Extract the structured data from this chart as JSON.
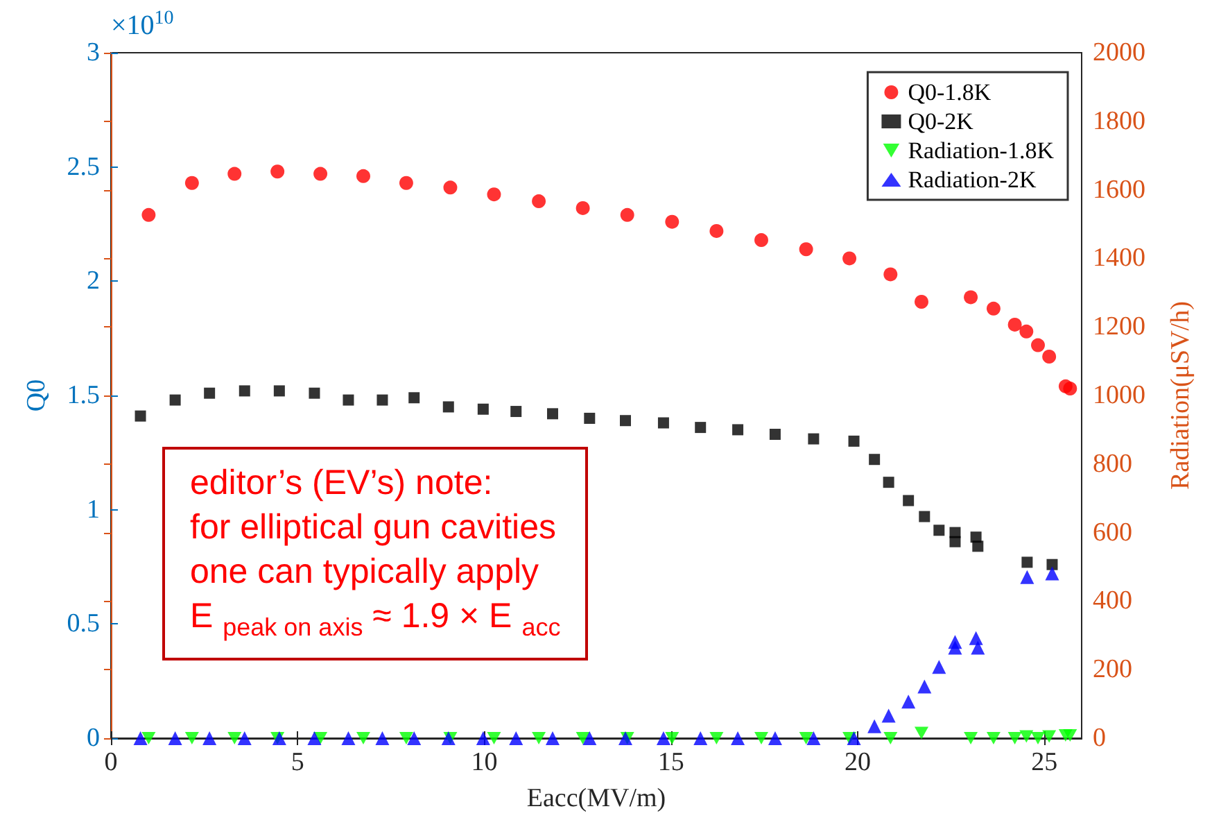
{
  "chart_data": {
    "type": "scatter",
    "xlabel": "Eacc(MV/m)",
    "ylabel": "Q0",
    "y2label": "Radiation(μSV/h)",
    "xlim": [
      0,
      26
    ],
    "xticks": [
      0,
      5,
      10,
      15,
      20,
      25
    ],
    "ylim": [
      0,
      3
    ],
    "yticks": [
      0,
      0.5,
      1,
      1.5,
      2,
      2.5,
      3
    ],
    "y2lim": [
      0,
      2000
    ],
    "y2ticks": [
      0,
      200,
      400,
      600,
      800,
      1000,
      1200,
      1400,
      1600,
      1800,
      2000
    ],
    "grid": false,
    "legend": "top right",
    "annotations": [
      "×10$^{10}$",
      "editor’s (EV’s) note:\nfor elliptical gun cavities\none can typically apply\nE $_{peak on axis}$ ≈ 1.9 × E $_{acc}$"
    ],
    "series": [
      {
        "name": "Q0-1.8K",
        "color": "#ff0000",
        "marker": "circle",
        "x": [
          1.01,
          2.17,
          3.31,
          4.46,
          5.61,
          6.76,
          7.91,
          9.09,
          10.26,
          11.46,
          12.64,
          13.83,
          15.03,
          16.22,
          17.42,
          18.62,
          19.78,
          20.88,
          21.71,
          23.03,
          23.64,
          24.21,
          24.52,
          24.83,
          25.13,
          25.57,
          25.69
        ],
        "values": [
          2.29,
          2.43,
          2.47,
          2.48,
          2.47,
          2.46,
          2.43,
          2.41,
          2.38,
          2.35,
          2.32,
          2.29,
          2.26,
          2.22,
          2.18,
          2.14,
          2.1,
          2.03,
          1.91,
          1.93,
          1.88,
          1.81,
          1.78,
          1.72,
          1.67,
          1.54,
          1.53
        ]
      },
      {
        "name": "Q0-2K",
        "color": "#000000",
        "marker": "square",
        "x": [
          0.79,
          1.72,
          2.64,
          3.58,
          4.51,
          5.45,
          6.36,
          7.27,
          8.12,
          9.04,
          9.97,
          10.85,
          11.83,
          12.82,
          13.78,
          14.8,
          15.79,
          16.79,
          17.79,
          18.82,
          19.9,
          20.45,
          20.83,
          21.36,
          21.79,
          22.18,
          22.61,
          22.61,
          23.17,
          23.22,
          24.54,
          25.21
        ],
        "values": [
          1.41,
          1.48,
          1.51,
          1.52,
          1.52,
          1.51,
          1.48,
          1.48,
          1.49,
          1.45,
          1.44,
          1.43,
          1.42,
          1.4,
          1.39,
          1.38,
          1.36,
          1.35,
          1.33,
          1.31,
          1.3,
          1.22,
          1.12,
          1.04,
          0.97,
          0.91,
          0.9,
          0.86,
          0.88,
          0.84,
          0.77,
          0.76
        ]
      },
      {
        "name": "Radiation-1.8K",
        "color": "#00ff00",
        "marker": "triangle_down",
        "axis": "y2",
        "x": [
          1.01,
          2.17,
          3.31,
          4.46,
          5.61,
          6.76,
          7.91,
          9.09,
          10.26,
          11.46,
          12.64,
          13.83,
          15.03,
          16.22,
          17.42,
          18.62,
          19.78,
          20.88,
          21.71,
          23.03,
          23.64,
          24.21,
          24.52,
          24.83,
          25.13,
          25.57,
          25.69
        ],
        "values": [
          0,
          0,
          0,
          0,
          0,
          0,
          0,
          0,
          0,
          0,
          0,
          0,
          0,
          0,
          0,
          0,
          0,
          0,
          15,
          0,
          0,
          0,
          5,
          0,
          5,
          8,
          8
        ]
      },
      {
        "name": "Radiation-2K",
        "color": "#0000ff",
        "marker": "triangle",
        "axis": "y2",
        "x": [
          0.79,
          1.72,
          2.64,
          3.58,
          4.51,
          5.45,
          6.36,
          7.27,
          8.12,
          9.04,
          9.97,
          10.85,
          11.83,
          12.82,
          13.78,
          14.8,
          15.79,
          16.79,
          17.79,
          18.82,
          19.9,
          20.45,
          20.83,
          21.36,
          21.79,
          22.18,
          22.61,
          22.61,
          23.17,
          23.22,
          24.54,
          25.21
        ],
        "values": [
          0,
          0,
          0,
          0,
          0,
          0,
          0,
          0,
          0,
          0,
          0,
          0,
          0,
          0,
          0,
          0,
          0,
          0,
          0,
          0,
          0,
          35,
          66,
          107,
          151,
          208,
          281,
          264,
          292,
          264,
          470,
          481
        ]
      }
    ]
  }
}
